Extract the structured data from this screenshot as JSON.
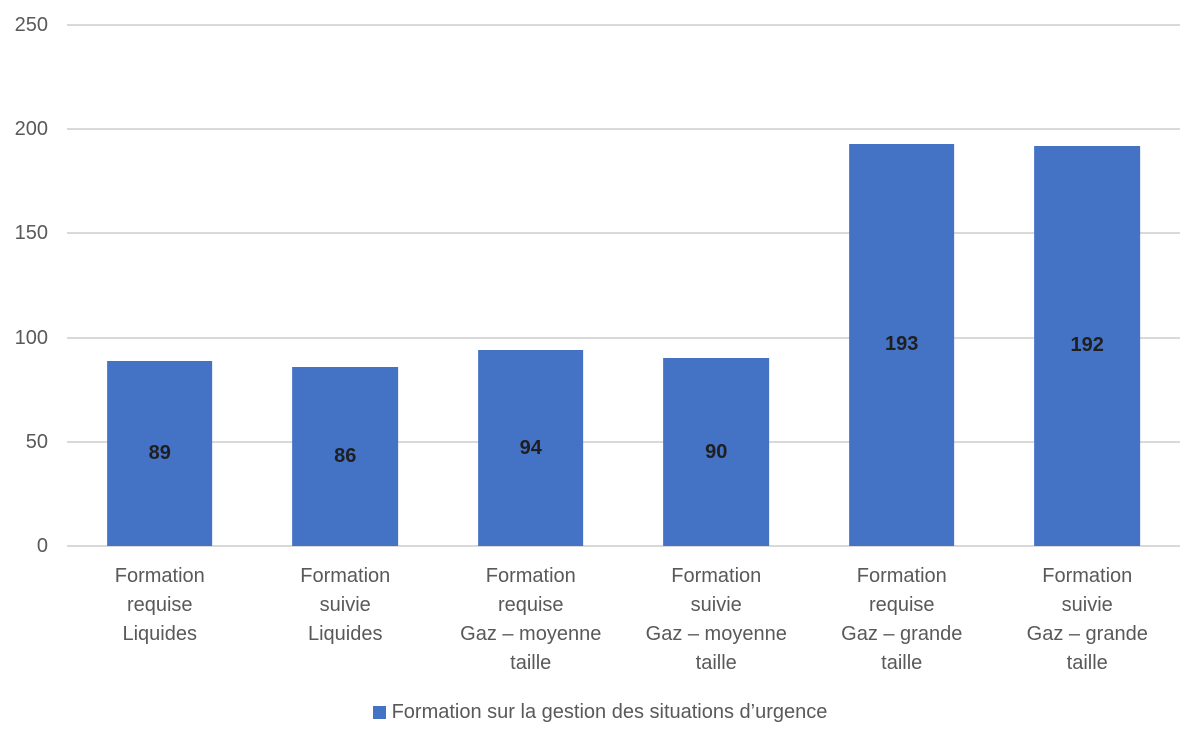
{
  "chart_data": {
    "type": "bar",
    "title": "",
    "xlabel": "",
    "ylabel": "",
    "categories": [
      "Formation\nrequise\nLiquides",
      "Formation\nsuivie\nLiquides",
      "Formation\nrequise\nGaz – moyenne\ntaille",
      "Formation\nsuivie\nGaz – moyenne\ntaille",
      "Formation\nrequise\nGaz – grande\ntaille",
      "Formation\nsuivie\nGaz – grande\ntaille"
    ],
    "values": [
      89,
      86,
      94,
      90,
      193,
      192
    ],
    "series_name": "Formation sur la gestion des situations d’urgence",
    "ylim": [
      0,
      250
    ],
    "yticks": [
      0,
      50,
      100,
      150,
      200,
      250
    ],
    "grid": true,
    "legend_position": "bottom",
    "data_labels_position": "center",
    "colors": {
      "bar": "#4472C4",
      "gridline": "#D9D9D9",
      "axis_text": "#595959",
      "data_label": "#1F1F1F",
      "background": "#FFFFFF"
    }
  },
  "legend": {
    "label": "Formation sur la gestion des situations d’urgence",
    "swatch_color": "#4472C4"
  }
}
